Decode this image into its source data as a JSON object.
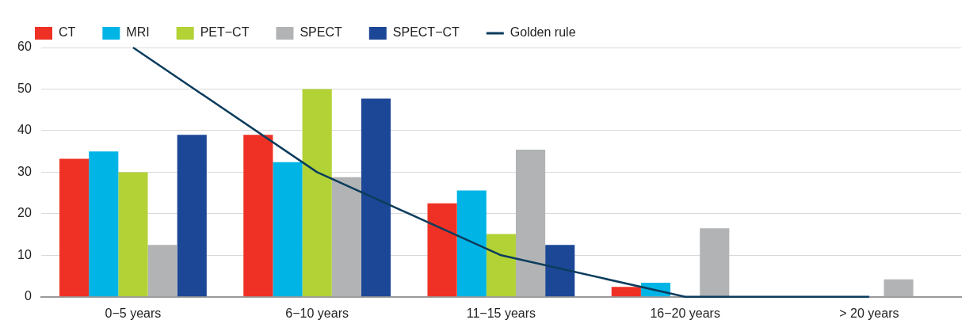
{
  "chart_data": {
    "type": "bar",
    "categories": [
      "0−5 years",
      "6−10 years",
      "11−15 years",
      "16−20 years",
      "> 20 years"
    ],
    "series": [
      {
        "name": "CT",
        "color": "#ee3124",
        "values": [
          33.2,
          39,
          22.5,
          2.4,
          0
        ]
      },
      {
        "name": "MRI",
        "color": "#00b5e6",
        "values": [
          35,
          32.4,
          25.6,
          3.4,
          0
        ]
      },
      {
        "name": "PET−CT",
        "color": "#b2d235",
        "values": [
          30,
          50,
          15.1,
          0,
          0
        ]
      },
      {
        "name": "SPECT",
        "color": "#b1b3b4",
        "values": [
          12.5,
          28.8,
          35.4,
          16.5,
          4.2
        ]
      },
      {
        "name": "SPECT−CT",
        "color": "#1c4796",
        "values": [
          39,
          47.7,
          12.5,
          0,
          0
        ]
      },
      {
        "name": "Golden rule",
        "type": "line",
        "color": "#0b3c5d",
        "values": [
          60,
          30,
          10,
          0,
          0
        ]
      }
    ],
    "ylim": [
      0,
      60
    ],
    "yticks": [
      0,
      10,
      20,
      30,
      40,
      50,
      60
    ],
    "grid": "y",
    "legend": "top left",
    "marker": "none"
  }
}
